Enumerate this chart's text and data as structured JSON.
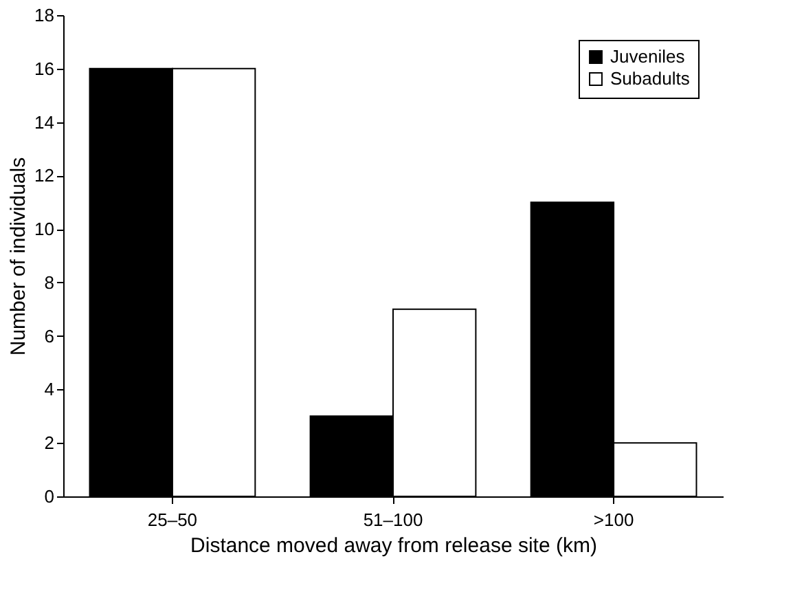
{
  "chart_data": {
    "type": "bar",
    "xlabel": "Distance moved away from release site (km)",
    "ylabel": "Number of individuals",
    "categories": [
      "25–50",
      "51–100",
      ">100"
    ],
    "series": [
      {
        "name": "Juveniles",
        "color": "#000000",
        "values": [
          16,
          3,
          11
        ]
      },
      {
        "name": "Subadults",
        "color": "#ffffff",
        "values": [
          16,
          7,
          2
        ]
      }
    ],
    "ylim": [
      0,
      18
    ],
    "yticks": [
      0,
      2,
      4,
      6,
      8,
      10,
      12,
      14,
      16,
      18
    ],
    "grid": false,
    "legend": "top right"
  }
}
